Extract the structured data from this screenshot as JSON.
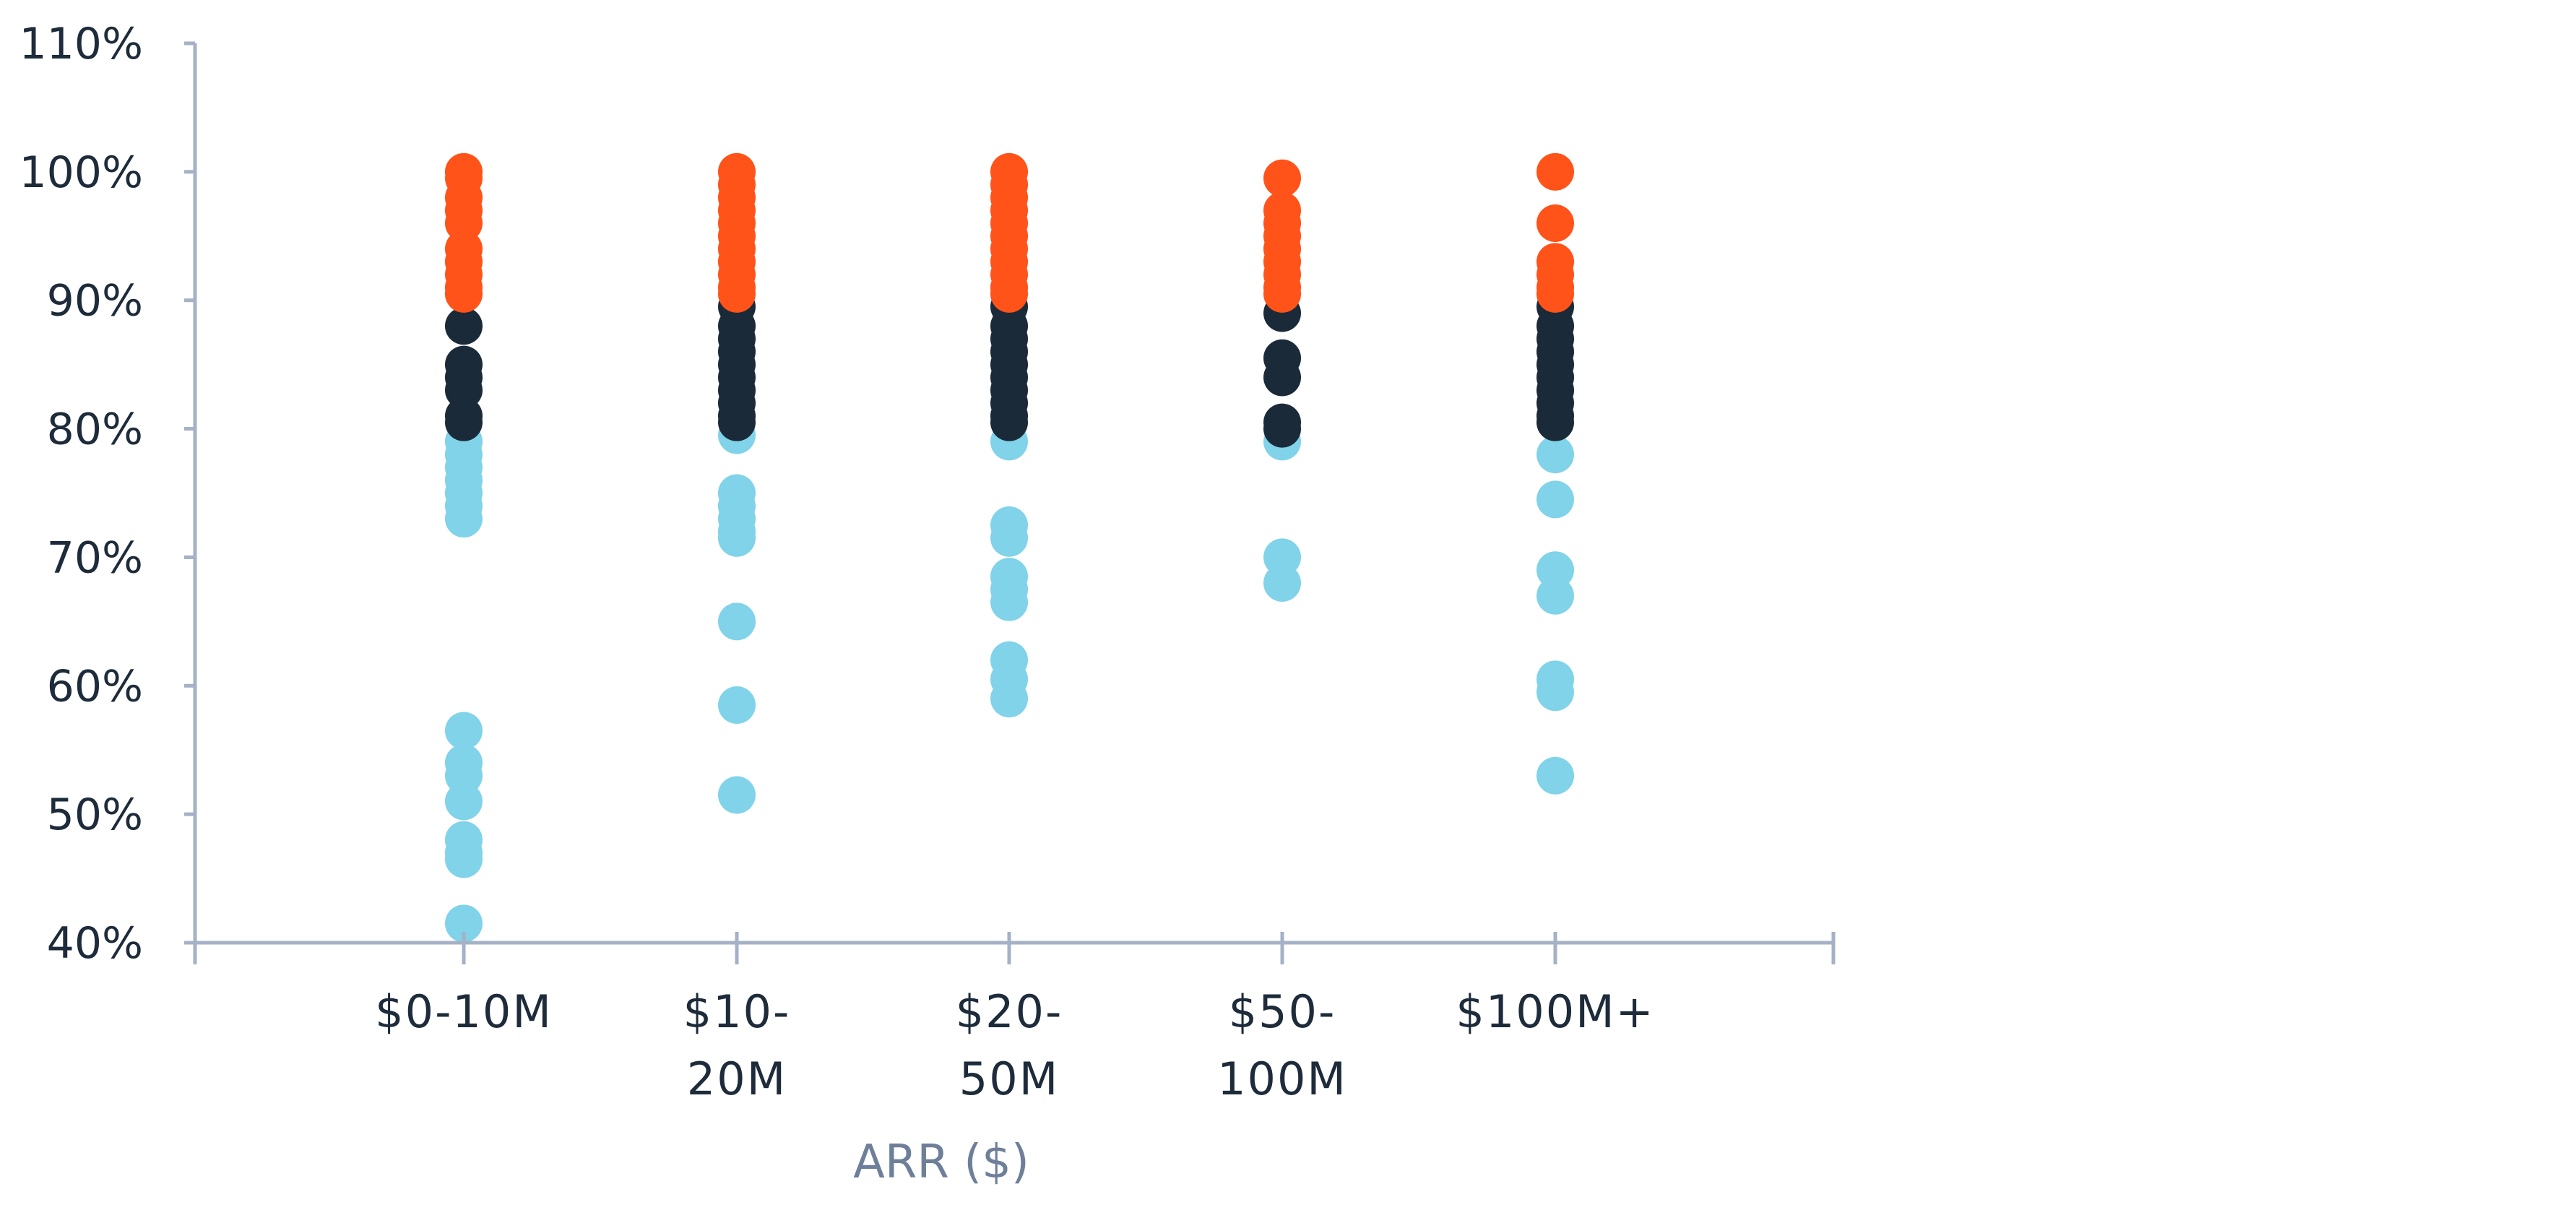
{
  "chart_data": {
    "type": "scatter",
    "title": "",
    "xlabel": "ARR ($)",
    "ylabel": "",
    "categories": [
      {
        "lines": [
          "$0-10M"
        ]
      },
      {
        "lines": [
          "$10-",
          "20M"
        ]
      },
      {
        "lines": [
          "$20-",
          "50M"
        ]
      },
      {
        "lines": [
          "$50-",
          "100M"
        ]
      },
      {
        "lines": [
          "$100M+"
        ]
      }
    ],
    "y_ticks": [
      "40%",
      "50%",
      "60%",
      "70%",
      "80%",
      "90%",
      "100%",
      "110%"
    ],
    "ylim": [
      40,
      110
    ],
    "grid": false,
    "colors": {
      "high": "#ff5319",
      "mid": "#1b2a38",
      "low": "#80d3e8",
      "axis": "#a4b1c6"
    },
    "series": [
      {
        "color_key": "low",
        "points": [
          [
            0,
            73
          ],
          [
            0,
            74
          ],
          [
            0,
            75
          ],
          [
            0,
            76
          ],
          [
            0,
            77
          ],
          [
            0,
            78
          ],
          [
            0,
            79
          ],
          [
            0,
            56.5
          ],
          [
            0,
            54
          ],
          [
            0,
            53
          ],
          [
            0,
            51
          ],
          [
            0,
            48
          ],
          [
            0,
            47
          ],
          [
            0,
            46.5
          ],
          [
            0,
            41.5
          ],
          [
            1,
            79.5
          ],
          [
            1,
            75
          ],
          [
            1,
            74
          ],
          [
            1,
            73
          ],
          [
            1,
            72
          ],
          [
            1,
            71.5
          ],
          [
            1,
            65
          ],
          [
            1,
            58.5
          ],
          [
            1,
            51.5
          ],
          [
            2,
            79
          ],
          [
            2,
            72.5
          ],
          [
            2,
            71.5
          ],
          [
            2,
            68.5
          ],
          [
            2,
            67.5
          ],
          [
            2,
            66.5
          ],
          [
            2,
            62
          ],
          [
            2,
            60.5
          ],
          [
            2,
            59
          ],
          [
            3,
            79
          ],
          [
            3,
            70
          ],
          [
            3,
            68
          ],
          [
            4,
            78
          ],
          [
            4,
            74.5
          ],
          [
            4,
            69
          ],
          [
            4,
            67
          ],
          [
            4,
            60.5
          ],
          [
            4,
            59.5
          ],
          [
            4,
            53
          ]
        ]
      },
      {
        "color_key": "mid",
        "points": [
          [
            0,
            88
          ],
          [
            0,
            85
          ],
          [
            0,
            84
          ],
          [
            0,
            83
          ],
          [
            0,
            81
          ],
          [
            0,
            80.5
          ],
          [
            1,
            89.5
          ],
          [
            1,
            88
          ],
          [
            1,
            87
          ],
          [
            1,
            86
          ],
          [
            1,
            85
          ],
          [
            1,
            84
          ],
          [
            1,
            83
          ],
          [
            1,
            82
          ],
          [
            1,
            81
          ],
          [
            1,
            80.5
          ],
          [
            2,
            89.5
          ],
          [
            2,
            88
          ],
          [
            2,
            87
          ],
          [
            2,
            86
          ],
          [
            2,
            85
          ],
          [
            2,
            84
          ],
          [
            2,
            83
          ],
          [
            2,
            82
          ],
          [
            2,
            81
          ],
          [
            2,
            80.5
          ],
          [
            3,
            89
          ],
          [
            3,
            85.5
          ],
          [
            3,
            84
          ],
          [
            3,
            80.5
          ],
          [
            3,
            80
          ],
          [
            4,
            89.5
          ],
          [
            4,
            88
          ],
          [
            4,
            87
          ],
          [
            4,
            86
          ],
          [
            4,
            85
          ],
          [
            4,
            84
          ],
          [
            4,
            83
          ],
          [
            4,
            82
          ],
          [
            4,
            81
          ],
          [
            4,
            80.5
          ]
        ]
      },
      {
        "color_key": "high",
        "points": [
          [
            0,
            100
          ],
          [
            0,
            99.5
          ],
          [
            0,
            98
          ],
          [
            0,
            97
          ],
          [
            0,
            96
          ],
          [
            0,
            94
          ],
          [
            0,
            93
          ],
          [
            0,
            92
          ],
          [
            0,
            91
          ],
          [
            0,
            90.5
          ],
          [
            1,
            100
          ],
          [
            1,
            99
          ],
          [
            1,
            98
          ],
          [
            1,
            97
          ],
          [
            1,
            96
          ],
          [
            1,
            95
          ],
          [
            1,
            94
          ],
          [
            1,
            93
          ],
          [
            1,
            92
          ],
          [
            1,
            91
          ],
          [
            1,
            90.5
          ],
          [
            2,
            100
          ],
          [
            2,
            99
          ],
          [
            2,
            98
          ],
          [
            2,
            97
          ],
          [
            2,
            96
          ],
          [
            2,
            95
          ],
          [
            2,
            94
          ],
          [
            2,
            93
          ],
          [
            2,
            92
          ],
          [
            2,
            91
          ],
          [
            2,
            90.5
          ],
          [
            3,
            99.5
          ],
          [
            3,
            97
          ],
          [
            3,
            96
          ],
          [
            3,
            95
          ],
          [
            3,
            94
          ],
          [
            3,
            93
          ],
          [
            3,
            92
          ],
          [
            3,
            91
          ],
          [
            3,
            90.5
          ],
          [
            4,
            100
          ],
          [
            4,
            96
          ],
          [
            4,
            93
          ],
          [
            4,
            92
          ],
          [
            4,
            91
          ],
          [
            4,
            90.5
          ]
        ]
      }
    ]
  }
}
